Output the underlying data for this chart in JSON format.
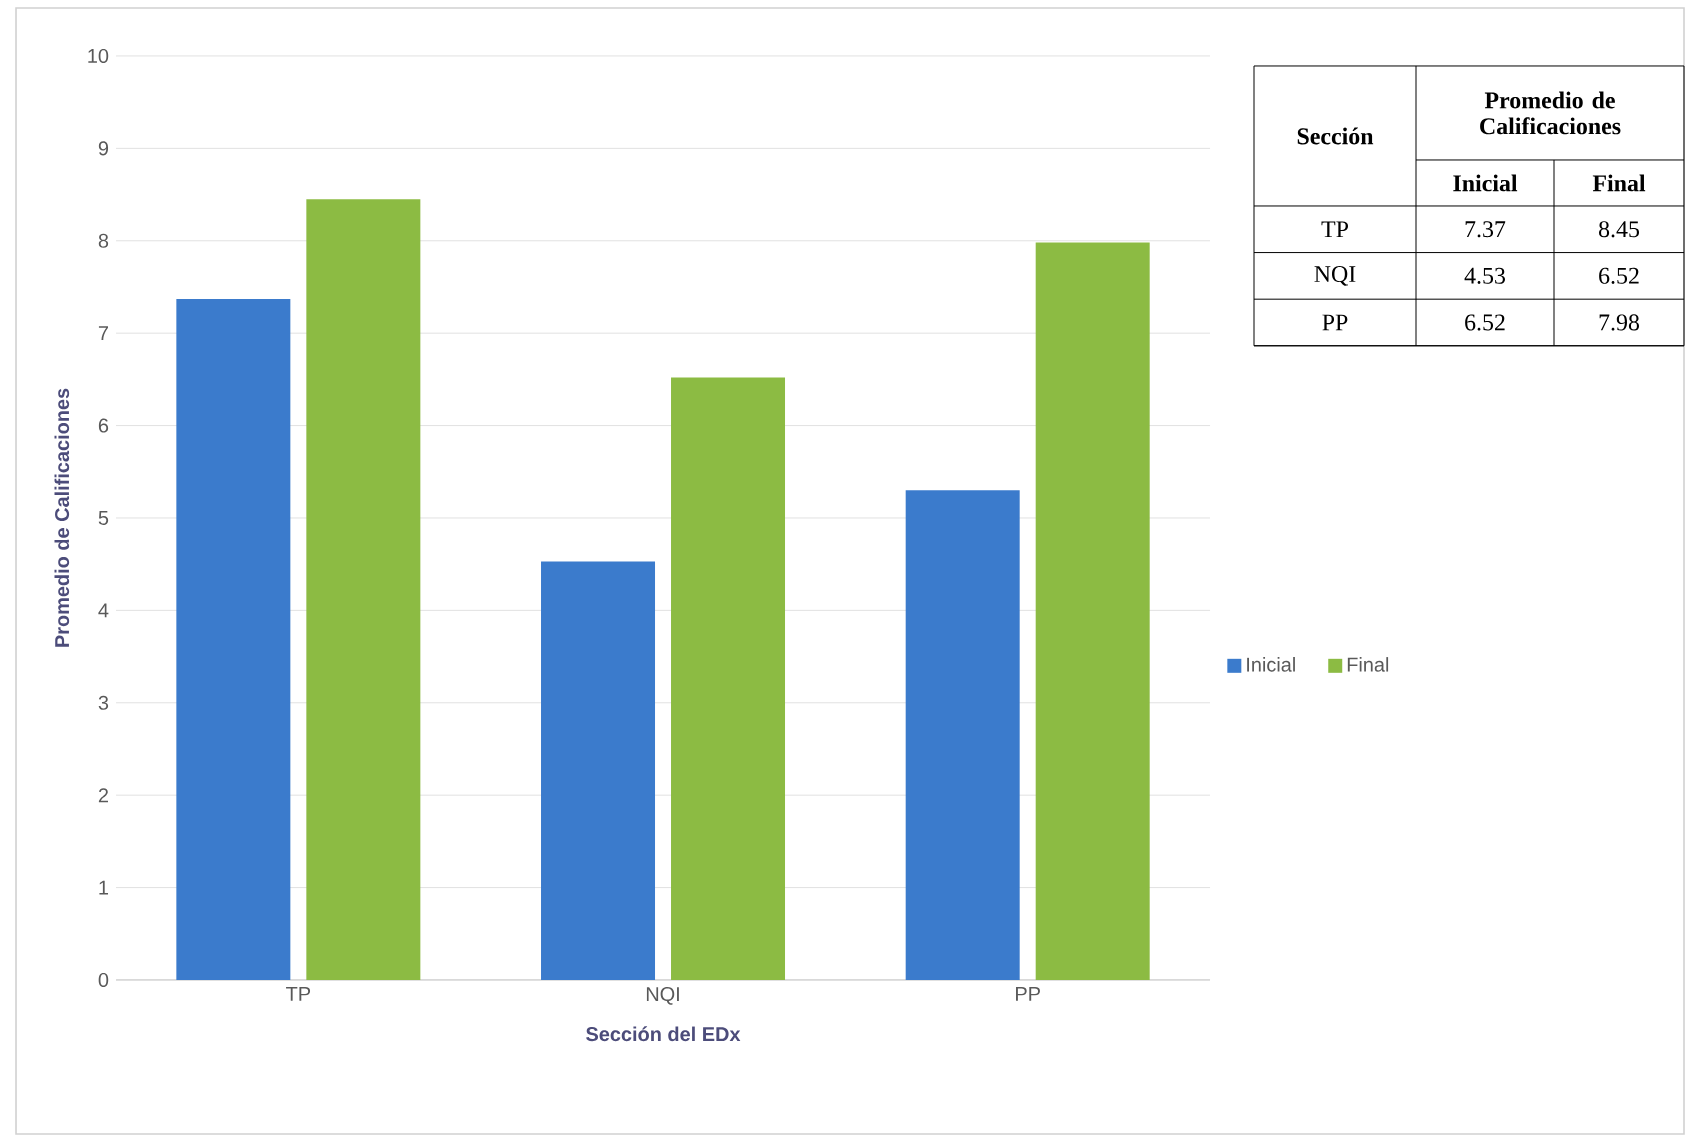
{
  "chart_data": {
    "type": "bar",
    "categories": [
      "TP",
      "NQI",
      "PP"
    ],
    "series": [
      {
        "name": "Inicial",
        "color": "#3b7bcc",
        "values": [
          7.37,
          4.53,
          5.3
        ]
      },
      {
        "name": "Final",
        "color": "#8cbb43",
        "values": [
          8.45,
          6.52,
          7.98
        ]
      }
    ],
    "xlabel": "Sección del EDx",
    "ylabel": "Promedio de Calificaciones",
    "ylim": [
      0,
      10
    ],
    "yticks": [
      0,
      1,
      2,
      3,
      4,
      5,
      6,
      7,
      8,
      9,
      10
    ],
    "grid": "y",
    "legend": "right",
    "annotations": [
      "Sección",
      "Promedio de Calificaciones",
      "7.37",
      "8.45",
      "4.53",
      "6.52",
      "6.52",
      "7.98"
    ]
  }
}
